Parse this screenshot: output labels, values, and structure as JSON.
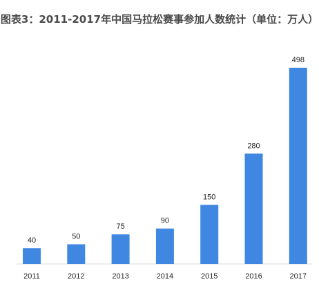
{
  "title": "图表3：2011-2017年中国马拉松赛事参加人数统计（单位：万人）",
  "chart_data": {
    "type": "bar",
    "title": "图表3：2011-2017年中国马拉松赛事参加人数统计（单位：万人）",
    "categories": [
      "2011",
      "2012",
      "2013",
      "2014",
      "2015",
      "2016",
      "2017"
    ],
    "values": [
      40,
      50,
      75,
      90,
      150,
      280,
      498
    ],
    "data_labels": [
      "40",
      "50",
      "75",
      "90",
      "150",
      "280",
      "498"
    ],
    "xlabel": "",
    "ylabel": "",
    "ylim": [
      0,
      498
    ],
    "grid": false,
    "legend": "none",
    "bar_color": "#3f87e0"
  }
}
